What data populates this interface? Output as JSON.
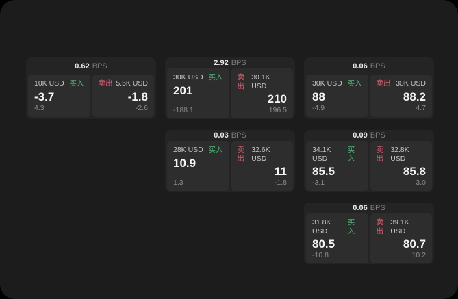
{
  "colors": {
    "buy": "#4db073",
    "sell": "#cf5a6e",
    "window_bg": "#1c1c1c",
    "card_bg": "#242424",
    "cell_bg": "#2d2d2d"
  },
  "labels": {
    "buy": "买入",
    "sell": "卖出",
    "bps_unit": "BPS"
  },
  "cards": [
    {
      "bps": "0.62",
      "unit": "BPS",
      "buy": {
        "amount": "10K USD",
        "label": "买入",
        "value": "-3.7",
        "delta": "4.3"
      },
      "sell": {
        "label": "卖出",
        "amount": "5.5K USD",
        "value": "-1.8",
        "delta": "-2.6"
      }
    },
    {
      "bps": "2.92",
      "unit": "BPS",
      "buy": {
        "amount": "30K USD",
        "label": "买入",
        "value": "201",
        "delta": "-188.1"
      },
      "sell": {
        "label": "卖出",
        "amount": "30.1K USD",
        "value": "210",
        "delta": "196.5"
      }
    },
    {
      "bps": "0.06",
      "unit": "BPS",
      "buy": {
        "amount": "30K USD",
        "label": "买入",
        "value": "88",
        "delta": "-4.9"
      },
      "sell": {
        "label": "卖出",
        "amount": "30K USD",
        "value": "88.2",
        "delta": "4.7"
      }
    },
    {
      "bps": "0.03",
      "unit": "BPS",
      "buy": {
        "amount": "28K USD",
        "label": "买入",
        "value": "10.9",
        "delta": "1.3"
      },
      "sell": {
        "label": "卖出",
        "amount": "32.6K USD",
        "value": "11",
        "delta": "-1.8"
      }
    },
    {
      "bps": "0.09",
      "unit": "BPS",
      "buy": {
        "amount": "34.1K USD",
        "label": "买入",
        "value": "85.5",
        "delta": "-3.1"
      },
      "sell": {
        "label": "卖出",
        "amount": "32.8K USD",
        "value": "85.8",
        "delta": "3.0"
      }
    },
    {
      "bps": "0.06",
      "unit": "BPS",
      "buy": {
        "amount": "31.8K USD",
        "label": "买入",
        "value": "80.5",
        "delta": "-10.8"
      },
      "sell": {
        "label": "卖出",
        "amount": "39.1K USD",
        "value": "80.7",
        "delta": "10.2"
      }
    }
  ]
}
